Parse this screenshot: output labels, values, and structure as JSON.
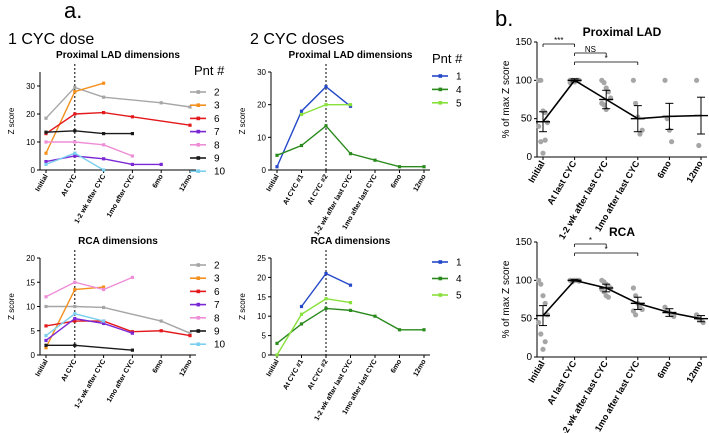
{
  "panel_labels": {
    "a": "a.",
    "b": "b."
  },
  "group_titles": {
    "one": "1 CYC dose",
    "two": "2 CYC doses"
  },
  "legend_titles": {
    "top": "Pnt #",
    "bottom": "Pnt #"
  },
  "colors": {
    "2": "#a6a6a6",
    "3": "#f4901e",
    "6": "#e3191c",
    "7": "#7a27d6",
    "8": "#ee8ed6",
    "9": "#1a1a1a",
    "10": "#7ccfee",
    "1": "#2448c9",
    "4": "#2a8a1d",
    "5": "#88e03a",
    "mean": "#000000",
    "dots": "#a6a6a6"
  },
  "chart_data": [
    {
      "id": "lad1",
      "type": "line",
      "title": "Proximal LAD dimensions",
      "xlabel": "",
      "ylabel": "Z score",
      "categories": [
        "Initial",
        "At CYC",
        "1-2 wk after CYC",
        "1mo after CYC",
        "6mo",
        "12mo"
      ],
      "ylim": [
        0,
        35
      ],
      "yticks": [
        0,
        10,
        20,
        30
      ],
      "dashed_at": "At CYC",
      "series": [
        {
          "name": "2",
          "values": [
            18.5,
            29.5,
            26,
            null,
            24,
            22.5
          ]
        },
        {
          "name": "3",
          "values": [
            6,
            28,
            31,
            null,
            null,
            null
          ]
        },
        {
          "name": "6",
          "values": [
            13,
            20,
            20.5,
            19,
            null,
            16
          ]
        },
        {
          "name": "7",
          "values": [
            3,
            5,
            4,
            2,
            2,
            null
          ]
        },
        {
          "name": "8",
          "values": [
            10,
            10,
            9,
            5,
            null,
            null
          ]
        },
        {
          "name": "9",
          "values": [
            13.5,
            14,
            13,
            13,
            null,
            null
          ]
        },
        {
          "name": "10",
          "values": [
            2,
            6,
            0,
            null,
            null,
            null
          ]
        }
      ]
    },
    {
      "id": "lad2",
      "type": "line",
      "title": "Proximal LAD dimensions",
      "xlabel": "",
      "ylabel": "Z score",
      "categories": [
        "Initial",
        "At CYC #1",
        "At CYC #2",
        "1-2 wk after last CYC",
        "1mo after last CYC",
        "6mo",
        "12mo"
      ],
      "ylim": [
        0,
        30
      ],
      "yticks": [
        0,
        10,
        20,
        30
      ],
      "dashed_at": "At CYC #2",
      "series": [
        {
          "name": "1",
          "values": [
            1,
            18,
            25.5,
            19.5,
            null,
            null,
            null
          ]
        },
        {
          "name": "4",
          "values": [
            4.5,
            7.5,
            13.5,
            5,
            3,
            1,
            1
          ]
        },
        {
          "name": "5",
          "values": [
            null,
            17,
            20,
            20,
            null,
            null,
            null
          ]
        }
      ]
    },
    {
      "id": "rca1",
      "type": "line",
      "title": "RCA dimensions",
      "xlabel": "",
      "ylabel": "Z score",
      "categories": [
        "Initial",
        "At CYC",
        "1-2 wk after CYC",
        "1mo after CYC",
        "6mo",
        "12mo"
      ],
      "ylim": [
        0,
        20
      ],
      "yticks": [
        0,
        5,
        10,
        15,
        20
      ],
      "dashed_at": "At CYC",
      "series": [
        {
          "name": "2",
          "values": [
            10,
            10,
            9.8,
            null,
            7,
            4.5
          ]
        },
        {
          "name": "3",
          "values": [
            1.5,
            13.5,
            14,
            null,
            null,
            null
          ]
        },
        {
          "name": "6",
          "values": [
            6,
            7,
            7,
            4.8,
            5,
            4
          ]
        },
        {
          "name": "7",
          "values": [
            3,
            7.5,
            6.5,
            4.5,
            null,
            null
          ]
        },
        {
          "name": "8",
          "values": [
            12,
            15,
            13.5,
            16,
            null,
            null
          ]
        },
        {
          "name": "9",
          "values": [
            2,
            2,
            null,
            1,
            null,
            null
          ]
        },
        {
          "name": "10",
          "values": [
            4,
            8.5,
            7,
            null,
            null,
            null
          ]
        }
      ]
    },
    {
      "id": "rca2",
      "type": "line",
      "title": "RCA dimensions",
      "xlabel": "",
      "ylabel": "Z score",
      "categories": [
        "Initial",
        "At CYC #1",
        "At CYC #2",
        "1-2 wk after last CYC",
        "1mo after last CYC",
        "6mo",
        "12mo"
      ],
      "ylim": [
        0,
        25
      ],
      "yticks": [
        0,
        5,
        10,
        15,
        20,
        25
      ],
      "dashed_at": "At CYC #2",
      "series": [
        {
          "name": "1",
          "values": [
            null,
            12.5,
            21,
            18,
            null,
            null,
            null
          ]
        },
        {
          "name": "4",
          "values": [
            3,
            8,
            12,
            11.5,
            10,
            6.5,
            6.5
          ]
        },
        {
          "name": "5",
          "values": [
            0,
            10.5,
            14.5,
            13.5,
            null,
            null,
            null
          ]
        }
      ]
    },
    {
      "id": "b_lad",
      "type": "scatter",
      "title": "Proximal LAD",
      "xlabel": "",
      "ylabel": "% of max Z score",
      "categories": [
        "Initial",
        "At last CYC",
        "1-2 wk after last CYC",
        "1mo after last CYC",
        "6mo",
        "12mo"
      ],
      "ylim": [
        0,
        150
      ],
      "yticks": [
        0,
        50,
        100,
        150
      ],
      "means": [
        46,
        100,
        75,
        50,
        53,
        54
      ],
      "errors": [
        13,
        2,
        12,
        17,
        17,
        24
      ],
      "points": [
        [
          100,
          100,
          60,
          58,
          45,
          40,
          20,
          5,
          22
        ],
        [
          100,
          100,
          100,
          100,
          100,
          100,
          99,
          98,
          100,
          100,
          97,
          100
        ],
        [
          100,
          97,
          90,
          85,
          77,
          70,
          68,
          62
        ],
        [
          100,
          70,
          52,
          30,
          35
        ],
        [
          100,
          50,
          35,
          20
        ],
        [
          100,
          15
        ]
      ],
      "sig": [
        {
          "from": 0,
          "to": 1,
          "label": "***"
        },
        {
          "from": 1,
          "to": 2,
          "label": "NS"
        },
        {
          "from": 1,
          "to": 3,
          "label": "*"
        }
      ]
    },
    {
      "id": "b_rca",
      "type": "scatter",
      "title": "RCA",
      "xlabel": "",
      "ylabel": "% of max Z score",
      "categories": [
        "Initial",
        "At last CYC",
        "1-2 wk after last CYC",
        "1mo after last CYC",
        "6mo",
        "12mo"
      ],
      "ylim": [
        0,
        150
      ],
      "yticks": [
        0,
        50,
        100,
        150
      ],
      "means": [
        54,
        100,
        90,
        70,
        58,
        50
      ],
      "errors": [
        13,
        1,
        5,
        8,
        5,
        4
      ],
      "points": [
        [
          100,
          95,
          80,
          70,
          55,
          45,
          30,
          10,
          20
        ],
        [
          100,
          100,
          100,
          100,
          99,
          100,
          98,
          100,
          100,
          100
        ],
        [
          100,
          98,
          95,
          92,
          90,
          88,
          85,
          80,
          78
        ],
        [
          90,
          80,
          70,
          65,
          62,
          60,
          55
        ],
        [
          65,
          60,
          58,
          55,
          53
        ],
        [
          55,
          50,
          48,
          45
        ]
      ],
      "sig": [
        {
          "from": 1,
          "to": 2,
          "label": "*"
        },
        {
          "from": 1,
          "to": 3,
          "label": "*"
        }
      ]
    }
  ]
}
